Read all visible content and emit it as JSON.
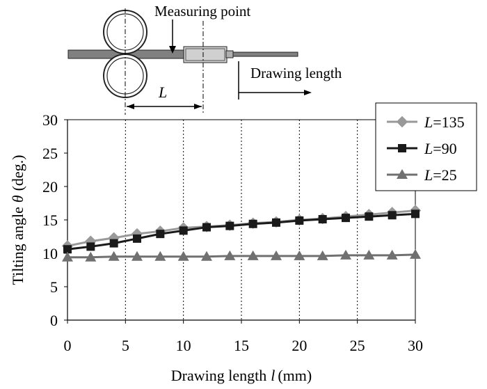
{
  "figure": {
    "measuring_point_label": "Measuring point",
    "drawing_length_label": "Drawing length",
    "L_label": "L"
  },
  "colors": {
    "L135": "#999999",
    "L90": "#1a1a1a",
    "L25": "#707070",
    "grid": "#000000",
    "rod": "#808080"
  },
  "chart_data": {
    "type": "line",
    "title": "",
    "xlabel_prefix": "Drawing length",
    "xlabel_var": "l",
    "xlabel_unit": "(mm)",
    "ylabel_prefix": "Tilting angle",
    "ylabel_var": "θ",
    "ylabel_unit": "(deg.)",
    "xlim": [
      0,
      30
    ],
    "ylim": [
      0,
      30
    ],
    "xticks": [
      0,
      5,
      10,
      15,
      20,
      25,
      30
    ],
    "yticks": [
      0,
      5,
      10,
      15,
      20,
      25,
      30
    ],
    "grid": "vertical dotted",
    "legend_position": "top-right",
    "x": [
      0,
      2,
      4,
      6,
      8,
      10,
      12,
      14,
      16,
      18,
      20,
      22,
      24,
      26,
      28,
      30
    ],
    "series": [
      {
        "name": "L=135",
        "legend_var": "L",
        "legend_val": "=135",
        "marker": "diamond",
        "values": [
          11.1,
          11.8,
          12.3,
          12.9,
          13.3,
          13.8,
          14.0,
          14.2,
          14.5,
          14.7,
          15.0,
          15.2,
          15.5,
          15.8,
          16.1,
          16.4
        ]
      },
      {
        "name": "L=90",
        "legend_var": "L",
        "legend_val": "=90",
        "marker": "square",
        "values": [
          10.6,
          11.0,
          11.5,
          12.2,
          12.9,
          13.4,
          13.9,
          14.1,
          14.4,
          14.6,
          14.9,
          15.1,
          15.3,
          15.5,
          15.7,
          15.9
        ]
      },
      {
        "name": "L=25",
        "legend_var": "L",
        "legend_val": "=25",
        "marker": "triangle",
        "values": [
          9.4,
          9.4,
          9.5,
          9.5,
          9.5,
          9.5,
          9.5,
          9.6,
          9.6,
          9.6,
          9.6,
          9.6,
          9.7,
          9.7,
          9.7,
          9.8
        ]
      }
    ]
  }
}
